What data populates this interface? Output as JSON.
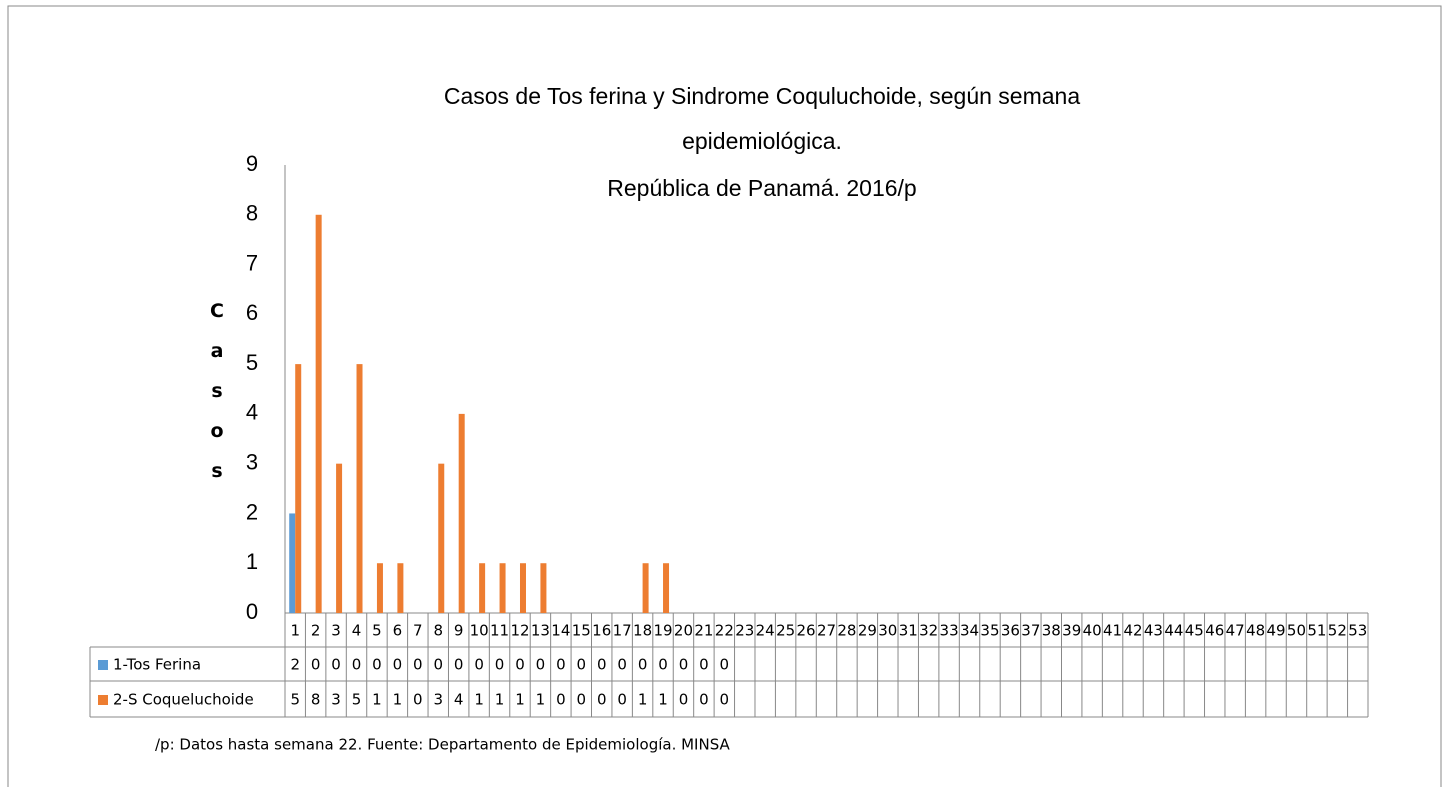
{
  "chart_data": {
    "type": "bar",
    "title": [
      "Casos de Tos ferina y Sindrome Coquluchoide, según semana",
      "epidemiológica.",
      "República de Panamá. 2016/p"
    ],
    "ylabel": "Casos",
    "categories": [
      1,
      2,
      3,
      4,
      5,
      6,
      7,
      8,
      9,
      10,
      11,
      12,
      13,
      14,
      15,
      16,
      17,
      18,
      19,
      20,
      21,
      22,
      23,
      24,
      25,
      26,
      27,
      28,
      29,
      30,
      31,
      32,
      33,
      34,
      35,
      36,
      37,
      38,
      39,
      40,
      41,
      42,
      43,
      44,
      45,
      46,
      47,
      48,
      49,
      50,
      51,
      52,
      53
    ],
    "series": [
      {
        "name": "1-Tos Ferina",
        "color": "#5b9bd5",
        "values": [
          2,
          0,
          0,
          0,
          0,
          0,
          0,
          0,
          0,
          0,
          0,
          0,
          0,
          0,
          0,
          0,
          0,
          0,
          0,
          0,
          0,
          0,
          null,
          null,
          null,
          null,
          null,
          null,
          null,
          null,
          null,
          null,
          null,
          null,
          null,
          null,
          null,
          null,
          null,
          null,
          null,
          null,
          null,
          null,
          null,
          null,
          null,
          null,
          null,
          null,
          null,
          null,
          null
        ]
      },
      {
        "name": "2-S Coqueluchoide",
        "color": "#ed7d31",
        "values": [
          5,
          8,
          3,
          5,
          1,
          1,
          0,
          3,
          4,
          1,
          1,
          1,
          1,
          0,
          0,
          0,
          0,
          1,
          1,
          0,
          0,
          0,
          null,
          null,
          null,
          null,
          null,
          null,
          null,
          null,
          null,
          null,
          null,
          null,
          null,
          null,
          null,
          null,
          null,
          null,
          null,
          null,
          null,
          null,
          null,
          null,
          null,
          null,
          null,
          null,
          null,
          null,
          null
        ]
      }
    ],
    "ylim": [
      0,
      9
    ],
    "yticks": [
      0,
      1,
      2,
      3,
      4,
      5,
      6,
      7,
      8,
      9
    ],
    "grid": false,
    "footnote": "/p: Datos hasta semana 22.  Fuente: Departamento de Epidemiología. MINSA"
  }
}
